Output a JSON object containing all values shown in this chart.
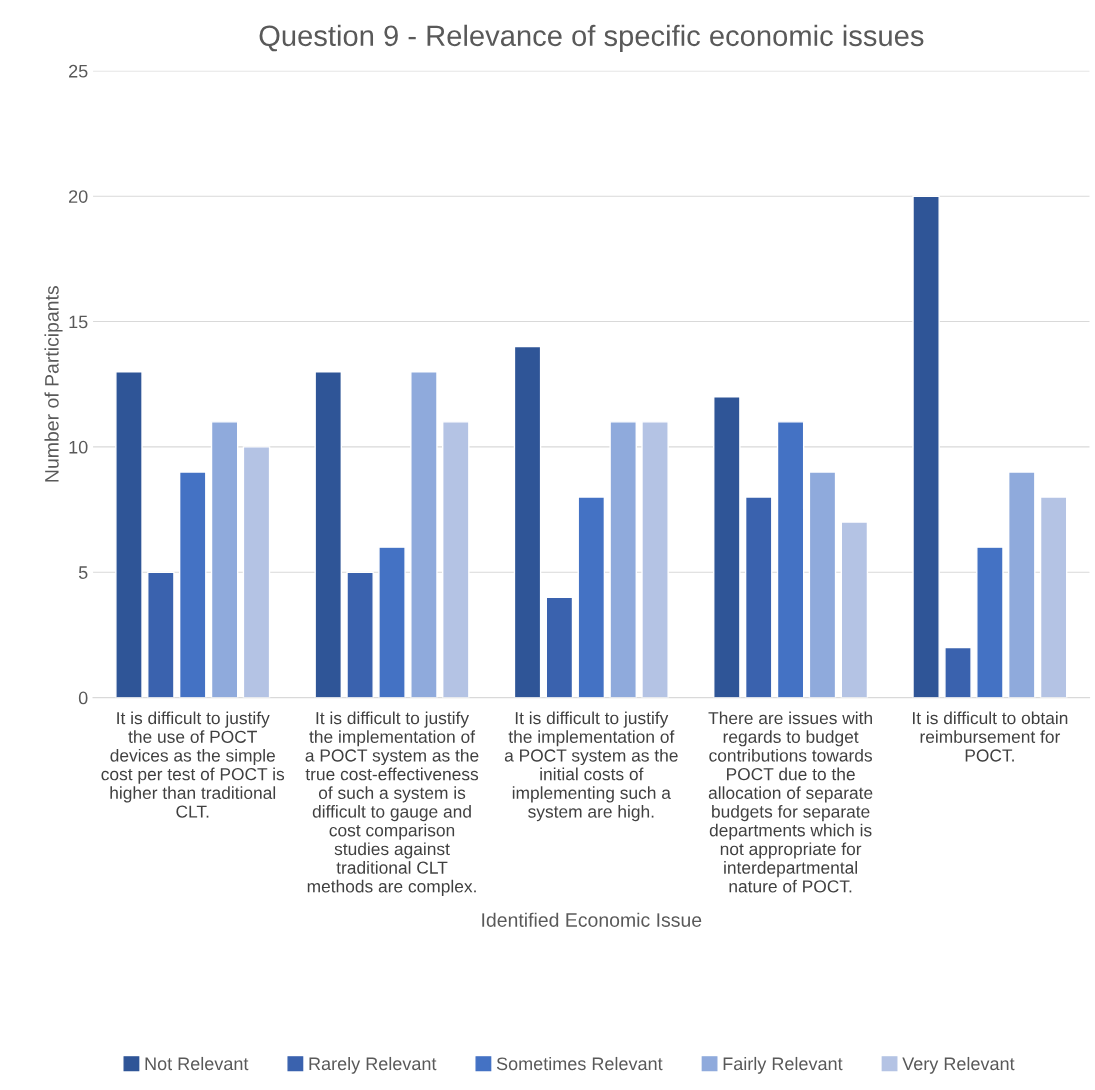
{
  "chart_data": {
    "type": "bar",
    "title": "Question 9 - Relevance of specific economic issues",
    "xlabel": "Identified Economic Issue",
    "ylabel": "Number of Participants",
    "categories": [
      "It is difficult to justify\nthe use of POCT\ndevices as the simple\ncost per test of POCT is\nhigher than traditional\nCLT.",
      "It is difficult to justify\nthe implementation of\na POCT system as the\ntrue cost-effectiveness\nof such a system is\ndifficult to gauge and\ncost comparison\nstudies against\ntraditional CLT\nmethods are complex.",
      "It is difficult to justify\nthe implementation of\na POCT system as the\ninitial costs of\nimplementing such a\nsystem are high.",
      "There are issues with\nregards to budget\ncontributions towards\nPOCT due to the\nallocation of separate\nbudgets for separate\ndepartments which is\nnot appropriate for\ninterdepartmental\nnature of POCT.",
      "It is difficult to obtain\nreimbursement for\nPOCT."
    ],
    "series": [
      {
        "name": "Not Relevant",
        "color": "#2f5597",
        "values": [
          13,
          13,
          14,
          12,
          20
        ]
      },
      {
        "name": "Rarely Relevant",
        "color": "#3a62ae",
        "values": [
          5,
          5,
          4,
          8,
          2
        ]
      },
      {
        "name": "Sometimes Relevant",
        "color": "#4472c4",
        "values": [
          9,
          6,
          8,
          11,
          6
        ]
      },
      {
        "name": "Fairly Relevant",
        "color": "#8faadc",
        "values": [
          11,
          13,
          11,
          9,
          9
        ]
      },
      {
        "name": "Very Relevant",
        "color": "#b4c3e4",
        "values": [
          10,
          11,
          11,
          7,
          8
        ]
      }
    ],
    "ylim": [
      0,
      25
    ],
    "yticks": [
      0,
      5,
      10,
      15,
      20,
      25
    ],
    "grid": "y",
    "legend": "bottom"
  }
}
